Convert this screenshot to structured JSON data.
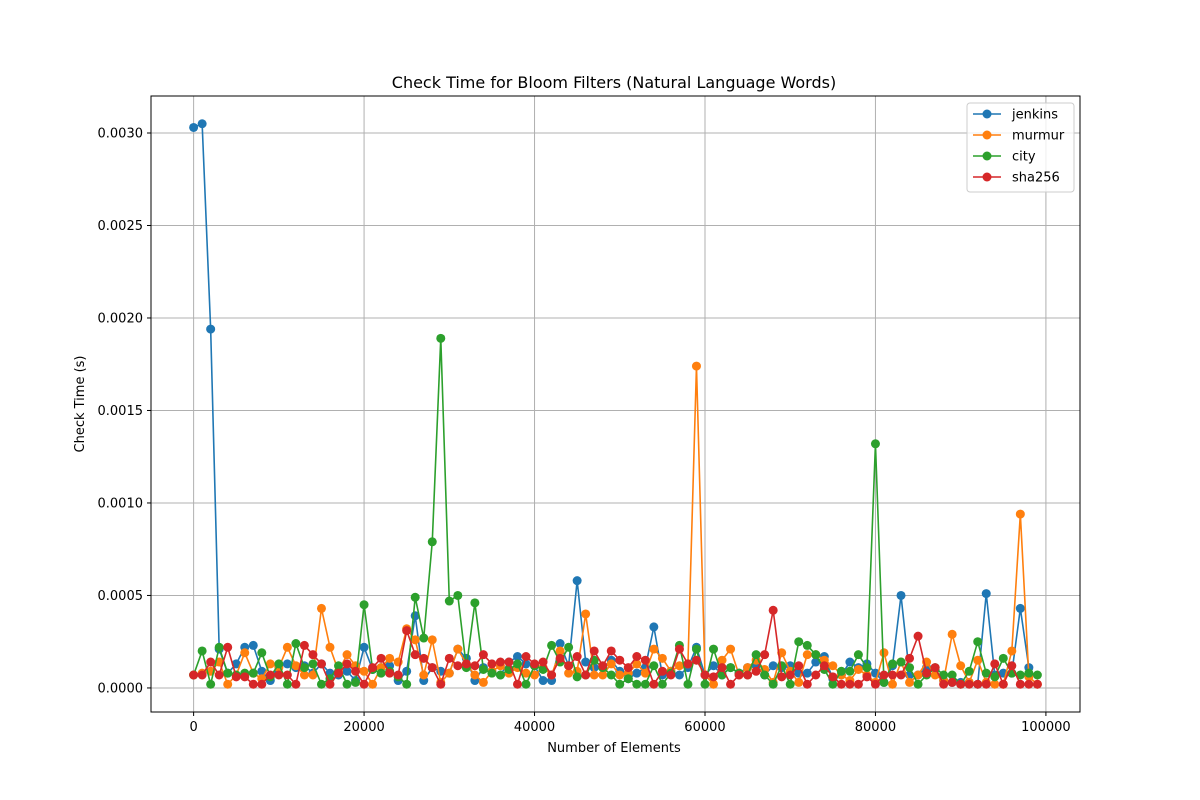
{
  "chart_data": {
    "type": "line",
    "title": "Check Time for Bloom Filters (Natural Language Words)",
    "xlabel": "Number of Elements",
    "ylabel": "Check Time (s)",
    "xlim": [
      -5000,
      104000
    ],
    "ylim": [
      -0.00013,
      0.0032
    ],
    "x_ticks": [
      0,
      20000,
      40000,
      60000,
      80000,
      100000
    ],
    "x_tick_labels": [
      "0",
      "20000",
      "40000",
      "60000",
      "80000",
      "100000"
    ],
    "y_ticks": [
      0.0,
      0.0005,
      0.001,
      0.0015,
      0.002,
      0.0025,
      0.003
    ],
    "y_tick_labels": [
      "0.0000",
      "0.0005",
      "0.0010",
      "0.0015",
      "0.0020",
      "0.0025",
      "0.0030"
    ],
    "grid": true,
    "legend_position": "top-right",
    "x_start": 0,
    "x_step": 1000,
    "series": [
      {
        "name": "jenkins",
        "color": "#1f77b4",
        "values": [
          0.00303,
          0.00305,
          0.00194,
          0.00021,
          8e-05,
          0.00013,
          0.00022,
          0.00023,
          9e-05,
          4e-05,
          0.00012,
          0.00013,
          0.00011,
          0.00012,
          8e-05,
          0.00013,
          8e-05,
          7e-05,
          9e-05,
          4e-05,
          0.00022,
          0.0001,
          0.00011,
          0.00012,
          4e-05,
          9e-05,
          0.00039,
          4e-05,
          0.00011,
          9e-05,
          8e-05,
          0.00021,
          0.00016,
          4e-05,
          0.00011,
          9e-05,
          7e-05,
          0.00014,
          0.00017,
          0.00013,
          0.00012,
          4e-05,
          4e-05,
          0.00024,
          0.00012,
          0.00058,
          0.00014,
          0.00011,
          0.00011,
          0.00015,
          9e-05,
          5e-05,
          8e-05,
          0.00011,
          0.00033,
          7e-05,
          9e-05,
          7e-05,
          0.00011,
          0.00022,
          7e-05,
          0.00012,
          7e-05,
          0.00011,
          8e-05,
          0.00011,
          0.00012,
          7e-05,
          0.00012,
          0.00011,
          0.00012,
          8e-05,
          8e-05,
          0.00014,
          0.00017,
          5e-05,
          7e-05,
          0.00014,
          0.00011,
          0.00013,
          8e-05,
          3e-05,
          0.00012,
          0.0005,
          7e-05,
          7e-05,
          0.00011,
          0.0001,
          4e-05,
          3e-05,
          3e-05,
          3e-05,
          2e-05,
          0.00051,
          7e-05,
          8e-05,
          8e-05,
          0.00043,
          0.00011
        ]
      },
      {
        "name": "murmur",
        "color": "#ff7f0e",
        "values": [
          7e-05,
          8e-05,
          9e-05,
          0.00014,
          2e-05,
          7e-05,
          0.00019,
          8e-05,
          5e-05,
          0.00013,
          0.00011,
          0.00022,
          0.00012,
          7e-05,
          7e-05,
          0.00043,
          0.00022,
          9e-05,
          0.00018,
          0.00012,
          9e-05,
          2e-05,
          0.00011,
          0.00016,
          0.00014,
          0.00032,
          0.00026,
          7e-05,
          0.00026,
          3e-05,
          8e-05,
          0.00021,
          0.00013,
          7e-05,
          3e-05,
          9e-05,
          0.00012,
          8e-05,
          0.00011,
          8e-05,
          7e-05,
          0.00011,
          7e-05,
          0.0002,
          8e-05,
          9e-05,
          0.0004,
          7e-05,
          7e-05,
          0.00013,
          7e-05,
          8e-05,
          0.00013,
          8e-05,
          0.00021,
          0.00016,
          9e-05,
          0.00012,
          0.00013,
          0.00174,
          7e-05,
          2e-05,
          0.00015,
          0.00021,
          7e-05,
          0.00011,
          0.00015,
          0.0001,
          3e-05,
          0.00019,
          9e-05,
          3e-05,
          0.00018,
          0.00018,
          0.00015,
          0.00012,
          7e-05,
          4e-05,
          0.0001,
          7e-05,
          3e-05,
          0.00019,
          2e-05,
          0.00014,
          3e-05,
          7e-05,
          0.00014,
          7e-05,
          4e-05,
          0.00029,
          0.00012,
          3e-05,
          0.00015,
          3e-05,
          2e-05,
          2e-05,
          0.0002,
          0.00094,
          6e-05,
          2e-05
        ]
      },
      {
        "name": "city",
        "color": "#2ca02c",
        "values": [
          7e-05,
          0.0002,
          2e-05,
          0.00022,
          8e-05,
          7e-05,
          8e-05,
          8e-05,
          0.00019,
          6e-05,
          0.00013,
          2e-05,
          0.00024,
          0.00011,
          0.00013,
          2e-05,
          5e-05,
          0.00012,
          2e-05,
          3e-05,
          0.00045,
          0.0001,
          8e-05,
          9e-05,
          6e-05,
          2e-05,
          0.00049,
          0.00027,
          0.00079,
          0.00189,
          0.00047,
          0.0005,
          0.00011,
          0.00046,
          0.0001,
          8e-05,
          7e-05,
          0.0001,
          0.00013,
          2e-05,
          0.00012,
          0.0001,
          0.00023,
          0.00014,
          0.00022,
          6e-05,
          7e-05,
          0.00015,
          0.00011,
          7e-05,
          2e-05,
          5e-05,
          2e-05,
          2e-05,
          0.00012,
          2e-05,
          8e-05,
          0.00023,
          2e-05,
          0.00021,
          2e-05,
          0.00021,
          7e-05,
          0.00011,
          8e-05,
          7e-05,
          0.00018,
          7e-05,
          2e-05,
          0.00012,
          2e-05,
          0.00025,
          0.00023,
          0.00018,
          0.0001,
          2e-05,
          9e-05,
          9e-05,
          0.00018,
          0.00011,
          0.00132,
          3e-05,
          0.00013,
          0.00014,
          0.00011,
          2e-05,
          7e-05,
          0.00011,
          7e-05,
          7e-05,
          2e-05,
          9e-05,
          0.00025,
          8e-05,
          6e-05,
          0.00016,
          8e-05,
          7e-05,
          8e-05,
          7e-05
        ]
      },
      {
        "name": "sha256",
        "color": "#d62728",
        "values": [
          7e-05,
          7e-05,
          0.00014,
          7e-05,
          0.00022,
          6e-05,
          6e-05,
          2e-05,
          2e-05,
          7e-05,
          7e-05,
          7e-05,
          2e-05,
          0.00023,
          0.00018,
          0.00013,
          2e-05,
          8e-05,
          0.00013,
          9e-05,
          2e-05,
          0.00011,
          0.00016,
          8e-05,
          7e-05,
          0.00031,
          0.00018,
          0.00016,
          0.00011,
          2e-05,
          0.00016,
          0.00012,
          0.00013,
          0.00012,
          0.00018,
          0.00013,
          0.00014,
          0.00014,
          2e-05,
          0.00017,
          0.00013,
          0.00014,
          7e-05,
          0.00016,
          0.00012,
          0.00017,
          7e-05,
          0.0002,
          0.00012,
          0.0002,
          0.00015,
          0.00011,
          0.00017,
          0.00015,
          2e-05,
          9e-05,
          7e-05,
          0.00021,
          0.00013,
          0.00015,
          7e-05,
          6e-05,
          0.00011,
          2e-05,
          7e-05,
          7e-05,
          9e-05,
          0.00018,
          0.00042,
          6e-05,
          7e-05,
          0.00012,
          2e-05,
          7e-05,
          0.00012,
          6e-05,
          2e-05,
          2e-05,
          2e-05,
          6e-05,
          2e-05,
          7e-05,
          7e-05,
          7e-05,
          0.00016,
          0.00028,
          8e-05,
          0.00011,
          2e-05,
          3e-05,
          2e-05,
          2e-05,
          2e-05,
          2e-05,
          0.00013,
          2e-05,
          0.00012,
          2e-05,
          2e-05,
          2e-05
        ]
      }
    ]
  }
}
